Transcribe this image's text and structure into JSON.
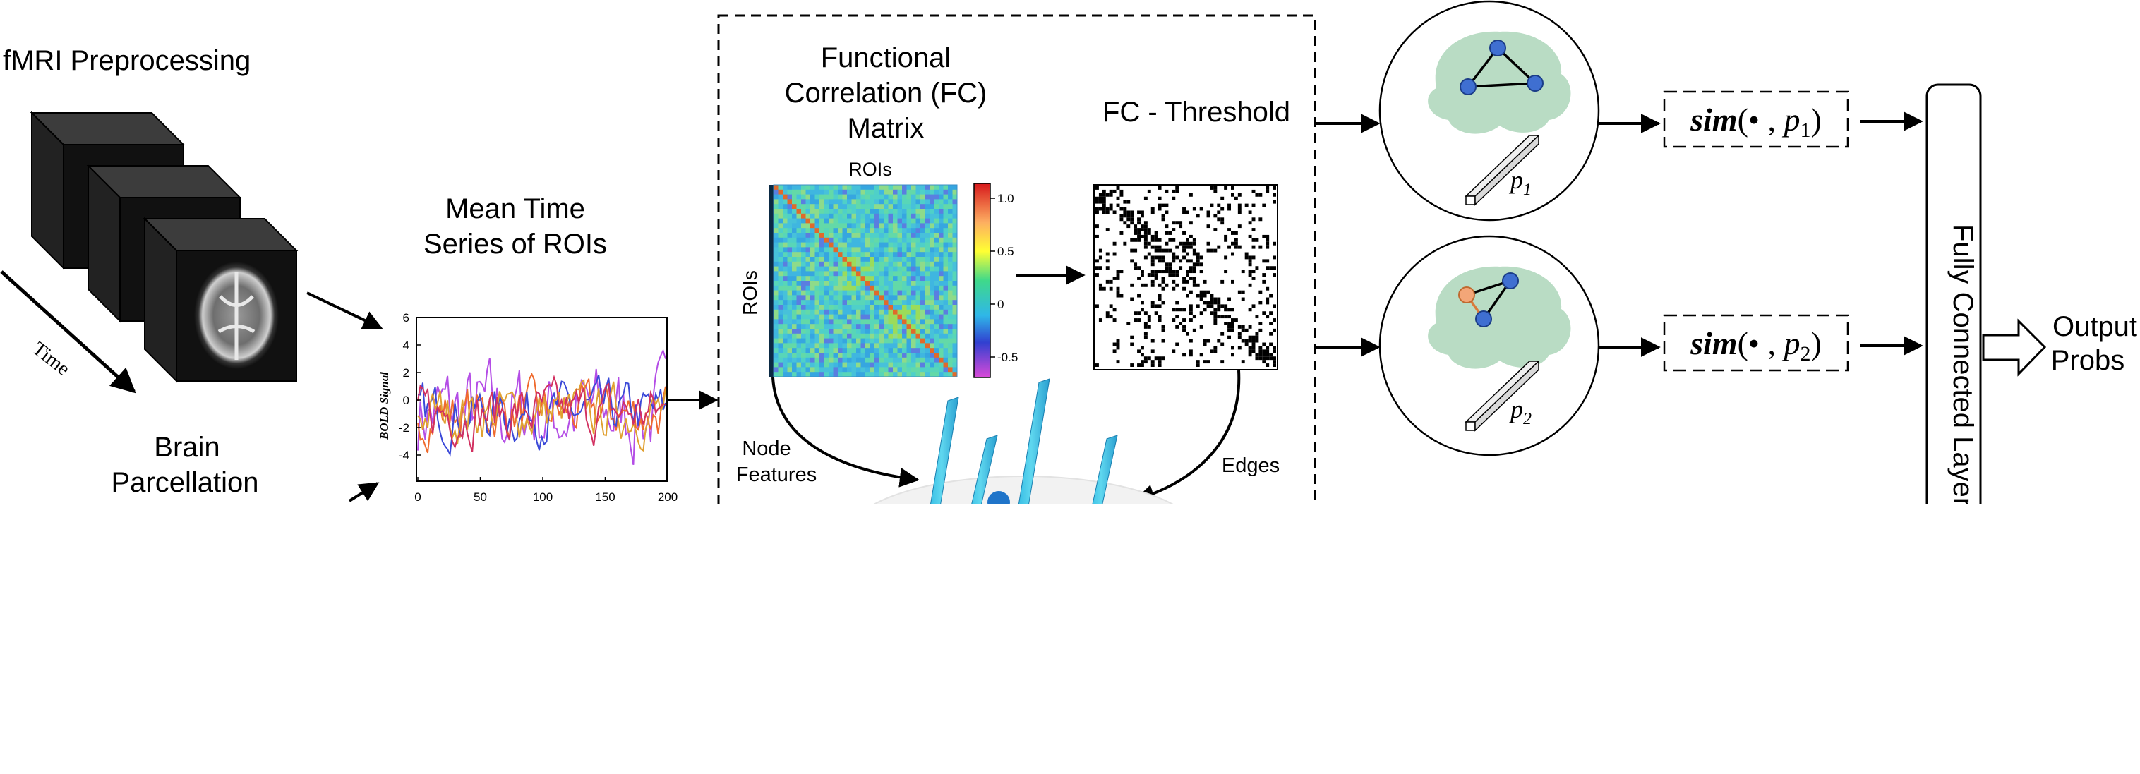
{
  "preprocessing": {
    "title": "fMRI Preprocessing",
    "time_label": "Time",
    "parcellation_line1": "Brain",
    "parcellation_line2": "Parcellation"
  },
  "time_series": {
    "title_line1": "Mean Time",
    "title_line2": "Series of ROIs",
    "ylabel": "BOLD Signal",
    "yticks": [
      "6",
      "4",
      "2",
      "0",
      "-2",
      "-4"
    ],
    "xticks": [
      "0",
      "50",
      "100",
      "150",
      "200"
    ]
  },
  "fc_matrix": {
    "title_line1": "Functional",
    "title_line2": "Correlation (FC)",
    "title_line3": "Matrix",
    "top_label": "ROIs",
    "side_label": "ROIs",
    "colorbar_ticks": [
      "1.0",
      "0.5",
      "0",
      "-0.5"
    ]
  },
  "threshold": {
    "title": "FC - Threshold"
  },
  "graph": {
    "node_features_line1": "Node",
    "node_features_line2": "Features",
    "edges_label": "Edges"
  },
  "prototypes": {
    "p1": {
      "letter": "p",
      "sub": "1"
    },
    "p2": {
      "letter": "p",
      "sub": "2"
    },
    "sim1": {
      "fn": "sim",
      "args": "(• , ",
      "p": "p",
      "sub": "1",
      "close": ")"
    },
    "sim2": {
      "fn": "sim",
      "args": "(• , ",
      "p": "p",
      "sub": "2",
      "close": ")"
    }
  },
  "fc_layer": {
    "label": "Fully Connected Layer"
  },
  "output": {
    "line1": "Output",
    "line2": "Probs"
  },
  "colors": {
    "brain_green": "#b9dcc4",
    "node_blue": "#3f6fd1",
    "node_orange": "#f3a678",
    "edge_orange": "#d97a3a",
    "series": [
      "#b44de6",
      "#ef6a2d",
      "#3b49d8",
      "#e0a030",
      "#d23060"
    ]
  }
}
